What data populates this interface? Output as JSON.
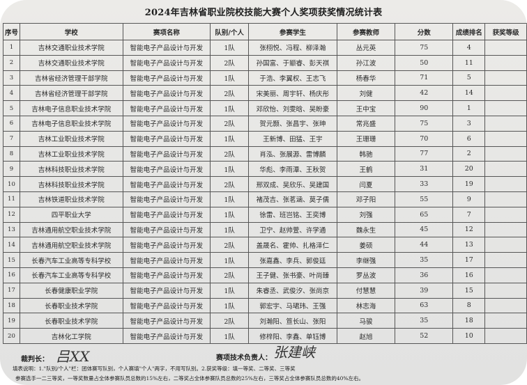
{
  "title": "2024年吉林省职业院校技能大赛个人奖项获奖情况统计表",
  "columns": [
    "序号",
    "学校",
    "赛项名称",
    "队别/个人",
    "参赛学生",
    "参赛教师",
    "分数",
    "成绩排名",
    "获奖等级"
  ],
  "rows": [
    [
      "1",
      "吉林交通职业技术学院",
      "智能电子产品设计与开发",
      "1队",
      "张栩悦、冯程、柳泽瀚",
      "丛元英",
      "75",
      "4",
      ""
    ],
    [
      "2",
      "吉林交通职业技术学院",
      "智能电子产品设计与开发",
      "2队",
      "孙国富、于颛睿、彭天祺",
      "孙江波",
      "50",
      "11",
      ""
    ],
    [
      "3",
      "吉林省经济管理干部学院",
      "智能电子产品设计与开发",
      "1队",
      "于浩、李翼权、王志飞",
      "杨春华",
      "71",
      "5",
      ""
    ],
    [
      "4",
      "吉林省经济管理干部学院",
      "智能电子产品设计与开发",
      "2队",
      "宋美丽、周宇轩、杨庆彤",
      "刘健",
      "42",
      "14",
      ""
    ],
    [
      "5",
      "吉林电子信息职业技术学院",
      "智能电子产品设计与开发",
      "1队",
      "邓欣怡、刘雯晗、吴盼豪",
      "王中宝",
      "90",
      "1",
      ""
    ],
    [
      "6",
      "吉林电子信息职业技术学院",
      "智能电子产品设计与开发",
      "2队",
      "贺元颢、张昌宇、张珅",
      "常兆盛",
      "75",
      "3",
      ""
    ],
    [
      "7",
      "吉林工业职业技术学院",
      "智能电子产品设计与开发",
      "1队",
      "王新博、田猛、王宇",
      "王珊珊",
      "70",
      "6",
      ""
    ],
    [
      "8",
      "吉林工业职业技术学院",
      "智能电子产品设计与开发",
      "2队",
      "肖泓、张展源、雷博麟",
      "韩驰",
      "77",
      "2",
      ""
    ],
    [
      "9",
      "吉林科技职业技术学院",
      "智能电子产品设计与开发",
      "1队",
      "华彪、李雨潭、王秋贺",
      "王鹤",
      "31",
      "20",
      ""
    ],
    [
      "10",
      "吉林科技职业技术学院",
      "智能电子产品设计与开发",
      "2队",
      "邢双成、吴欣乐、吴建国",
      "闫夏",
      "33",
      "19",
      ""
    ],
    [
      "11",
      "吉林铁道职业技术学院",
      "智能电子产品设计与开发",
      "1队",
      "褚茂吉、张茗涵、莫子儒",
      "邓子阳",
      "55",
      "9",
      ""
    ],
    [
      "12",
      "四平职业大学",
      "智能电子产品设计与开发",
      "1队",
      "徐雷、班岂铭、王奕博",
      "刘强",
      "65",
      "7",
      ""
    ],
    [
      "13",
      "吉林通用航空职业技术学院",
      "智能电子产品设计与开发",
      "1队",
      "卫宁、赵帅萱、许学通",
      "魏永生",
      "45",
      "12",
      ""
    ],
    [
      "14",
      "吉林通用航空职业技术学院",
      "智能电子产品设计与开发",
      "2队",
      "盖晟名、霍帅、扎格泽仁",
      "姜硕",
      "44",
      "13",
      ""
    ],
    [
      "15",
      "长春汽车工业高等专科学校",
      "智能电子产品设计与开发",
      "1队",
      "张嘉鑫、李兵、郭俊廷",
      "李继强",
      "35",
      "17",
      ""
    ],
    [
      "16",
      "长春汽车工业高等专科学校",
      "智能电子产品设计与开发",
      "2队",
      "王子健、张书豪、叶尚臻",
      "罗丛波",
      "36",
      "16",
      ""
    ],
    [
      "17",
      "长春健康职业学院",
      "智能电子产品设计与开发",
      "1队",
      "朱睿丞、武俊汐、张尚京",
      "付慧慧",
      "39",
      "15",
      ""
    ],
    [
      "18",
      "长春职业技术学院",
      "智能电子产品设计与开发",
      "1队",
      "郭宏宇、马珺玮、王强",
      "林志海",
      "63",
      "8",
      ""
    ],
    [
      "19",
      "长春职业技术学院",
      "智能电子产品设计与开发",
      "2队",
      "刘瀚阳、笪长山、张阳",
      "马骏",
      "35",
      "18",
      ""
    ],
    [
      "20",
      "吉林化工学院",
      "智能电子产品设计与开发",
      "1队",
      "修梓阳、李鑫、单钰博",
      "赵旭",
      "52",
      "10",
      ""
    ]
  ],
  "footer": {
    "judge_label": "裁判长：",
    "judge_signature": "吕XX",
    "tech_label": "赛项技术负责人：",
    "tech_signature": "张建峡",
    "note1": "填表说明：1.\"队别/个人\"栏：团体赛写队别，个人赛填\"个人\"两字，不用写队别。2.获奖等级：填一等奖、二等奖、三等奖",
    "note2": "参赛选手一二三等奖，一等奖数量占全体参赛队员总数的15%左右，二等奖占全体参赛队员总数的25%左右，三等奖占全体参赛队员总数的40%左右。"
  }
}
